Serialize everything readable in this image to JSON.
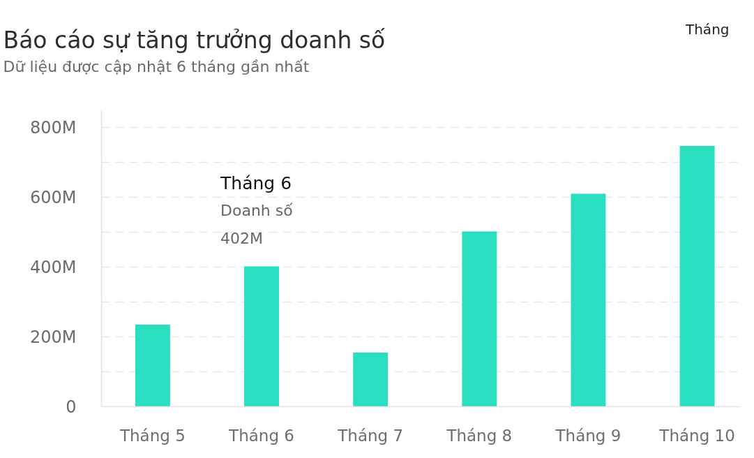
{
  "chart_data": {
    "type": "bar",
    "title": "Báo cáo sự tăng trưởng doanh số",
    "subtitle": "Dữ liệu được cập nhật 6 tháng gần nhất",
    "categories": [
      "Tháng 5",
      "Tháng 6",
      "Tháng 7",
      "Tháng 8",
      "Tháng 9",
      "Tháng 10"
    ],
    "values": [
      235,
      402,
      155,
      502,
      610,
      747
    ],
    "color": "#29dfc0",
    "ylim": [
      0,
      850
    ],
    "yticks": [
      0,
      {
        "value": 100,
        "label": null
      },
      {
        "value": 200,
        "label": "200M"
      },
      {
        "value": 300,
        "label": null
      },
      {
        "value": 400,
        "label": "400M"
      },
      {
        "value": 500,
        "label": null
      },
      {
        "value": 600,
        "label": "600M"
      },
      {
        "value": 700,
        "label": null
      },
      {
        "value": 800,
        "label": "800M"
      }
    ],
    "grid": "y",
    "annotations": [
      {
        "text": "Tháng 6\nDoanh số\n402M",
        "x": "Tháng 6",
        "y": 402
      },
      "Tháng"
    ]
  }
}
